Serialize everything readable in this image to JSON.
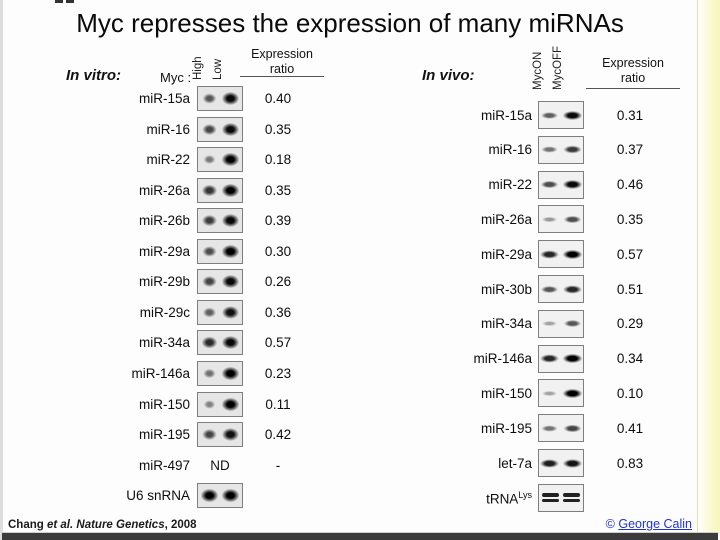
{
  "title": "Myc represses the expression of many miRNAs",
  "colors": {
    "link": "#2233cc",
    "bottom_bar": "#3c3c3c",
    "right_strip": "#f6f6bc",
    "blot_fill": "#e6e6e6"
  },
  "panels": {
    "in_vitro": {
      "label": "In vitro:",
      "myc_label": "Myc :",
      "lane_headers": [
        "High",
        "Low"
      ],
      "ratio_header": [
        "Expression",
        "ratio"
      ],
      "blot_style": "dot",
      "rows": [
        {
          "name": "miR-15a",
          "ratio": "0.40",
          "lanes": [
            0.5,
            0.95
          ]
        },
        {
          "name": "miR-16",
          "ratio": "0.35",
          "lanes": [
            0.6,
            0.95
          ]
        },
        {
          "name": "miR-22",
          "ratio": "0.18",
          "lanes": [
            0.3,
            1.0
          ]
        },
        {
          "name": "miR-26a",
          "ratio": "0.35",
          "lanes": [
            0.7,
            1.0
          ]
        },
        {
          "name": "miR-26b",
          "ratio": "0.39",
          "lanes": [
            0.65,
            0.95
          ]
        },
        {
          "name": "miR-29a",
          "ratio": "0.30",
          "lanes": [
            0.55,
            1.0
          ]
        },
        {
          "name": "miR-29b",
          "ratio": "0.26",
          "lanes": [
            0.6,
            0.95
          ]
        },
        {
          "name": "miR-29c",
          "ratio": "0.36",
          "lanes": [
            0.45,
            0.9
          ]
        },
        {
          "name": "miR-34a",
          "ratio": "0.57",
          "lanes": [
            0.75,
            0.95
          ]
        },
        {
          "name": "miR-146a",
          "ratio": "0.23",
          "lanes": [
            0.35,
            1.0
          ]
        },
        {
          "name": "miR-150",
          "ratio": "0.11",
          "lanes": [
            0.25,
            1.0
          ]
        },
        {
          "name": "miR-195",
          "ratio": "0.42",
          "lanes": [
            0.6,
            0.9
          ]
        },
        {
          "name": "miR-497",
          "ratio": "-",
          "nd": "ND"
        },
        {
          "name": "U6 snRNA",
          "ratio": "",
          "lanes": [
            1.0,
            1.0
          ]
        }
      ]
    },
    "in_vivo": {
      "label": "In vivo:",
      "lane_headers": [
        "MycON",
        "MycOFF"
      ],
      "ratio_header": [
        "Expression",
        "ratio"
      ],
      "blot_style": "band",
      "rows": [
        {
          "name": "miR-15a",
          "ratio": "0.31",
          "lanes": [
            0.5,
            0.95
          ]
        },
        {
          "name": "miR-16",
          "ratio": "0.37",
          "lanes": [
            0.4,
            0.7
          ]
        },
        {
          "name": "miR-22",
          "ratio": "0.46",
          "lanes": [
            0.6,
            0.95
          ]
        },
        {
          "name": "miR-26a",
          "ratio": "0.35",
          "lanes": [
            0.2,
            0.6
          ]
        },
        {
          "name": "miR-29a",
          "ratio": "0.57",
          "lanes": [
            0.8,
            1.0
          ]
        },
        {
          "name": "miR-30b",
          "ratio": "0.51",
          "lanes": [
            0.55,
            0.8
          ]
        },
        {
          "name": "miR-34a",
          "ratio": "0.29",
          "lanes": [
            0.15,
            0.55
          ]
        },
        {
          "name": "miR-146a",
          "ratio": "0.34",
          "lanes": [
            0.8,
            1.0
          ]
        },
        {
          "name": "miR-150",
          "ratio": "0.10",
          "lanes": [
            0.15,
            1.0
          ]
        },
        {
          "name": "miR-195",
          "ratio": "0.41",
          "lanes": [
            0.4,
            0.65
          ]
        },
        {
          "name": "let-7a",
          "ratio": "0.83",
          "lanes": [
            0.85,
            0.9
          ]
        },
        {
          "name": "tRNA",
          "name_sup": "Lys",
          "ratio": "",
          "lanes": [
            0.95,
            0.95
          ],
          "double": true
        }
      ]
    }
  },
  "footer": {
    "citation_prefix": "Chang ",
    "citation_italic": "et al. Nature Genetics",
    "citation_suffix": ", 2008",
    "credit_symbol": "© ",
    "credit_name": "George Calin"
  }
}
